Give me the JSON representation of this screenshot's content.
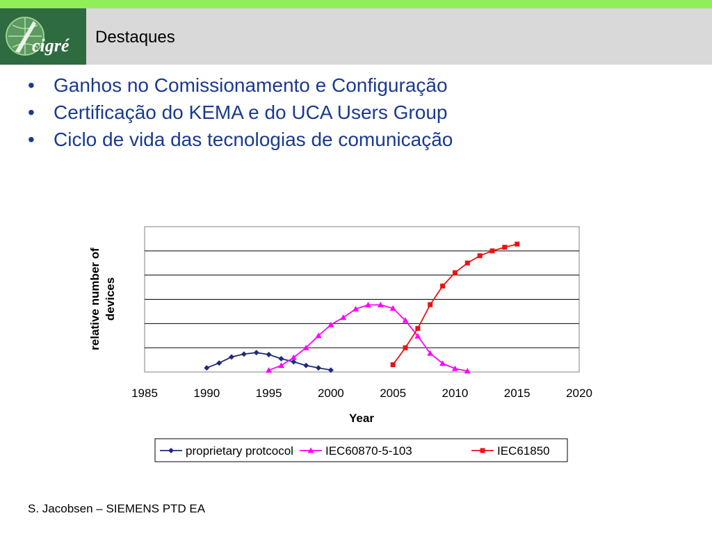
{
  "header": {
    "logo_text": "cigré",
    "title": "Destaques"
  },
  "bullets": [
    "Ganhos no Comissionamento e Configuração",
    "Certificação do KEMA e do UCA Users Group",
    "Ciclo de vida das tecnologias de comunicação"
  ],
  "chart_data": {
    "type": "line",
    "title": "",
    "xlabel": "Year",
    "ylabel": "relative number of devices",
    "xlim": [
      1985,
      2020
    ],
    "ylim": [
      0,
      6
    ],
    "xticks": [
      "1985",
      "1990",
      "1995",
      "2000",
      "2005",
      "2010",
      "2015",
      "2020"
    ],
    "grid": "horizontal",
    "legend_position": "bottom",
    "series": [
      {
        "name": "proprietary protcocol",
        "color": "#1f2a7a",
        "marker": "diamond",
        "x": [
          1990,
          1991,
          1992,
          1993,
          1994,
          1995,
          1996,
          1997,
          1998,
          1999,
          2000
        ],
        "y": [
          0.17,
          0.37,
          0.62,
          0.74,
          0.8,
          0.72,
          0.55,
          0.42,
          0.27,
          0.17,
          0.08
        ]
      },
      {
        "name": "IEC60870-5-103",
        "color": "#ff00ff",
        "marker": "triangle",
        "x": [
          1995,
          1996,
          1997,
          1998,
          1999,
          2000,
          2001,
          2002,
          2003,
          2004,
          2005,
          2006,
          2007,
          2008,
          2009,
          2010,
          2011
        ],
        "y": [
          0.07,
          0.27,
          0.6,
          1.0,
          1.5,
          1.95,
          2.25,
          2.6,
          2.77,
          2.77,
          2.63,
          2.13,
          1.48,
          0.77,
          0.35,
          0.14,
          0.04
        ]
      },
      {
        "name": "IEC61850",
        "color": "#ee1111",
        "marker": "square",
        "x": [
          2005,
          2006,
          2007,
          2008,
          2009,
          2010,
          2011,
          2012,
          2013,
          2014,
          2015
        ],
        "y": [
          0.3,
          1.0,
          1.8,
          2.78,
          3.55,
          4.1,
          4.5,
          4.8,
          5.0,
          5.15,
          5.28
        ]
      }
    ]
  },
  "footer": {
    "text": "S. Jacobsen – SIEMENS PTD EA"
  }
}
